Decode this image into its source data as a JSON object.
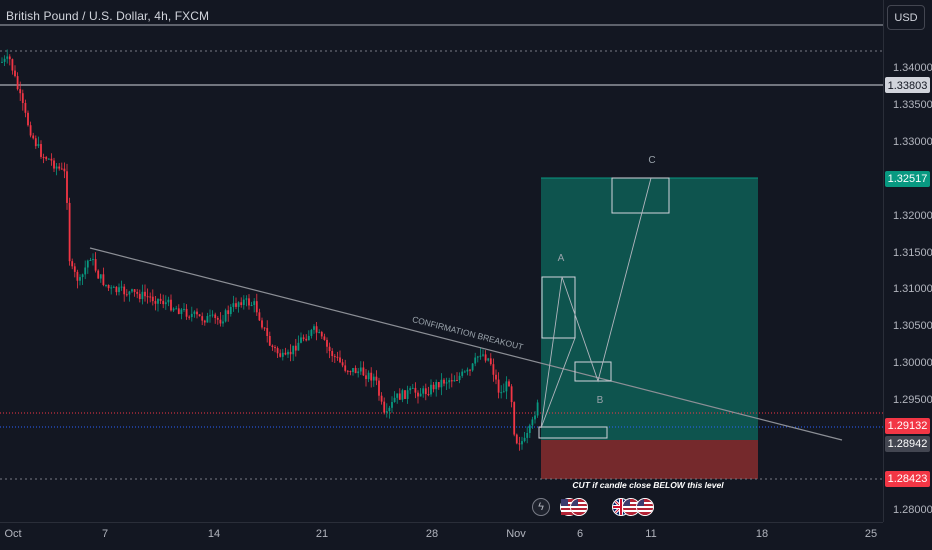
{
  "header": {
    "title": "British Pound / U.S. Dollar, 4h, FXCM",
    "currency_button": "USD"
  },
  "price_axis": {
    "ticks": [
      "1.34000",
      "1.33500",
      "1.33000",
      "1.32000",
      "1.31500",
      "1.31000",
      "1.30500",
      "1.30000",
      "1.29500",
      "1.28000"
    ],
    "labels": [
      {
        "text": "1.33803",
        "style": "outline",
        "color": "#d1d4dc"
      },
      {
        "text": "1.32517",
        "style": "filled",
        "color": "#089981"
      },
      {
        "text": "1.29132",
        "style": "filled",
        "color": "#f23645"
      },
      {
        "text": "1.28942",
        "style": "filled",
        "color": "#434651"
      },
      {
        "text": "1.28423",
        "style": "filled",
        "color": "#f23645"
      }
    ]
  },
  "time_axis": {
    "ticks": [
      "Oct",
      "7",
      "14",
      "21",
      "28",
      "Nov",
      "6",
      "11",
      "18",
      "25"
    ]
  },
  "annotations": {
    "confirmation_breakout": "CONFIRMATION BREAKOUT",
    "cut_note": "CUT if candle close BELOW this level",
    "point_a": "A",
    "point_b": "B",
    "point_c": "C"
  },
  "event_icons": [
    {
      "icon": "lightning-icon",
      "glyph": "ϟ"
    },
    {
      "icon": "us-flag-icon",
      "glyph": "🇺🇸"
    },
    {
      "icon": "us-flag-icon",
      "glyph": "🇺🇸"
    },
    {
      "icon": "uk-flag-icon",
      "glyph": "🇬🇧"
    },
    {
      "icon": "us-flag-icon",
      "glyph": "🇺🇸"
    },
    {
      "icon": "us-flag-icon",
      "glyph": "🇺🇸"
    }
  ],
  "colors": {
    "background": "#131722",
    "bull": "#089981",
    "bear": "#f23645",
    "profit_zone": "#0e5a52",
    "loss_zone": "#7a2a2d",
    "trendline": "#8c8f96"
  }
}
